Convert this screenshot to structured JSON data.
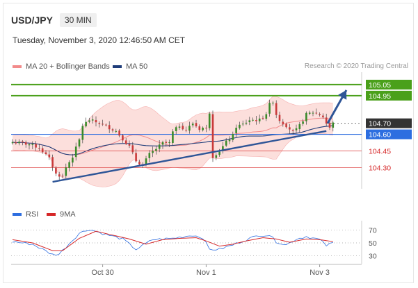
{
  "header": {
    "pair": "USD/JPY",
    "timeframe": "30 MIN"
  },
  "datetime": "Tuesday, November 3, 2020 12:46:50 AM CET",
  "legend_top": {
    "bb_label": "MA 20 + Bollinger Bands",
    "ma50_label": "MA 50"
  },
  "legend_bottom": {
    "rsi_label": "RSI",
    "ma9_label": "9MA"
  },
  "credit": "Research © 2020 Trading Central",
  "colors": {
    "bb": "#f28b8b",
    "band": "#fbd9d6",
    "ma50": "#1f3d7a",
    "green": "#4aa01a",
    "blue": "#2d6ee0",
    "red": "#d62728",
    "dark": "#333333",
    "candle_up": "#3a8a2a",
    "candle_down": "#c93a3a",
    "trend": "#2e5597"
  },
  "chart_data": [
    {
      "type": "candlestick",
      "instrument": "USD/JPY",
      "timeframe": "30 MIN",
      "ylim": [
        104.12,
        105.15
      ],
      "x_ticks": [
        {
          "label": "Oct 30",
          "i": 27
        },
        {
          "label": "Nov 1",
          "i": 58
        },
        {
          "label": "Nov 3",
          "i": 92
        }
      ],
      "candle_count": 97,
      "close_anchors": [
        [
          0,
          104.53
        ],
        [
          5,
          104.51
        ],
        [
          8,
          104.48
        ],
        [
          11,
          104.38
        ],
        [
          13,
          104.24
        ],
        [
          15,
          104.22
        ],
        [
          16,
          104.3
        ],
        [
          18,
          104.4
        ],
        [
          20,
          104.55
        ],
        [
          21,
          104.68
        ],
        [
          23,
          104.73
        ],
        [
          26,
          104.7
        ],
        [
          29,
          104.66
        ],
        [
          31,
          104.63
        ],
        [
          33,
          104.56
        ],
        [
          35,
          104.49
        ],
        [
          37,
          104.36
        ],
        [
          39,
          104.32
        ],
        [
          41,
          104.42
        ],
        [
          43,
          104.47
        ],
        [
          45,
          104.52
        ],
        [
          47,
          104.52
        ],
        [
          48,
          104.62
        ],
        [
          50,
          104.68
        ],
        [
          52,
          104.64
        ],
        [
          54,
          104.7
        ],
        [
          56,
          104.65
        ],
        [
          57,
          104.66
        ],
        [
          58,
          104.65
        ],
        [
          59,
          104.8
        ],
        [
          60,
          104.4
        ],
        [
          62,
          104.45
        ],
        [
          64,
          104.53
        ],
        [
          66,
          104.59
        ],
        [
          67,
          104.67
        ],
        [
          69,
          104.69
        ],
        [
          71,
          104.73
        ],
        [
          74,
          104.73
        ],
        [
          76,
          104.79
        ],
        [
          77,
          104.87
        ],
        [
          78,
          104.9
        ],
        [
          79,
          104.78
        ],
        [
          80,
          104.73
        ],
        [
          82,
          104.68
        ],
        [
          84,
          104.62
        ],
        [
          85,
          104.64
        ],
        [
          86,
          104.68
        ],
        [
          88,
          104.78
        ],
        [
          90,
          104.8
        ],
        [
          92,
          104.78
        ],
        [
          93,
          104.76
        ],
        [
          94,
          104.7
        ],
        [
          95,
          104.66
        ],
        [
          96,
          104.7
        ]
      ],
      "levels": [
        {
          "value": 105.05,
          "label": "105.05",
          "style": "target"
        },
        {
          "value": 104.95,
          "label": "104.95",
          "style": "target"
        },
        {
          "value": 104.7,
          "label": "104.70",
          "style": "current"
        },
        {
          "value": 104.6,
          "label": "104.60",
          "style": "pivot"
        },
        {
          "value": 104.45,
          "label": "104.45",
          "style": "support"
        },
        {
          "value": 104.3,
          "label": "104.30",
          "style": "support"
        }
      ],
      "trendline": [
        [
          12,
          104.17
        ],
        [
          94,
          104.63
        ]
      ],
      "forecast_arrow": [
        [
          94,
          104.7
        ],
        [
          100,
          105.0
        ]
      ]
    },
    {
      "type": "line",
      "title": "RSI",
      "series": [
        {
          "name": "RSI",
          "points": [
            [
              0,
              52
            ],
            [
              6,
              48
            ],
            [
              12,
              32
            ],
            [
              14,
              33
            ],
            [
              20,
              65
            ],
            [
              23,
              71
            ],
            [
              28,
              63
            ],
            [
              33,
              56
            ],
            [
              37,
              40
            ],
            [
              42,
              55
            ],
            [
              48,
              57
            ],
            [
              54,
              62
            ],
            [
              57,
              58
            ],
            [
              59,
              40
            ],
            [
              62,
              40
            ],
            [
              66,
              47
            ],
            [
              70,
              55
            ],
            [
              74,
              62
            ],
            [
              77,
              62
            ],
            [
              79,
              52
            ],
            [
              82,
              47
            ],
            [
              85,
              56
            ],
            [
              88,
              60
            ],
            [
              92,
              55
            ],
            [
              94,
              46
            ],
            [
              96,
              50
            ]
          ]
        },
        {
          "name": "9MA",
          "points": [
            [
              0,
              55
            ],
            [
              6,
              50
            ],
            [
              12,
              38
            ],
            [
              15,
              38
            ],
            [
              20,
              57
            ],
            [
              25,
              68
            ],
            [
              30,
              62
            ],
            [
              35,
              56
            ],
            [
              40,
              48
            ],
            [
              45,
              55
            ],
            [
              50,
              57
            ],
            [
              55,
              58
            ],
            [
              58,
              53
            ],
            [
              62,
              45
            ],
            [
              66,
              48
            ],
            [
              70,
              53
            ],
            [
              75,
              58
            ],
            [
              79,
              56
            ],
            [
              83,
              51
            ],
            [
              88,
              56
            ],
            [
              92,
              55
            ],
            [
              96,
              52
            ]
          ]
        }
      ],
      "y_ticks": [
        70,
        50,
        30
      ],
      "ylim": [
        20,
        80
      ]
    }
  ]
}
